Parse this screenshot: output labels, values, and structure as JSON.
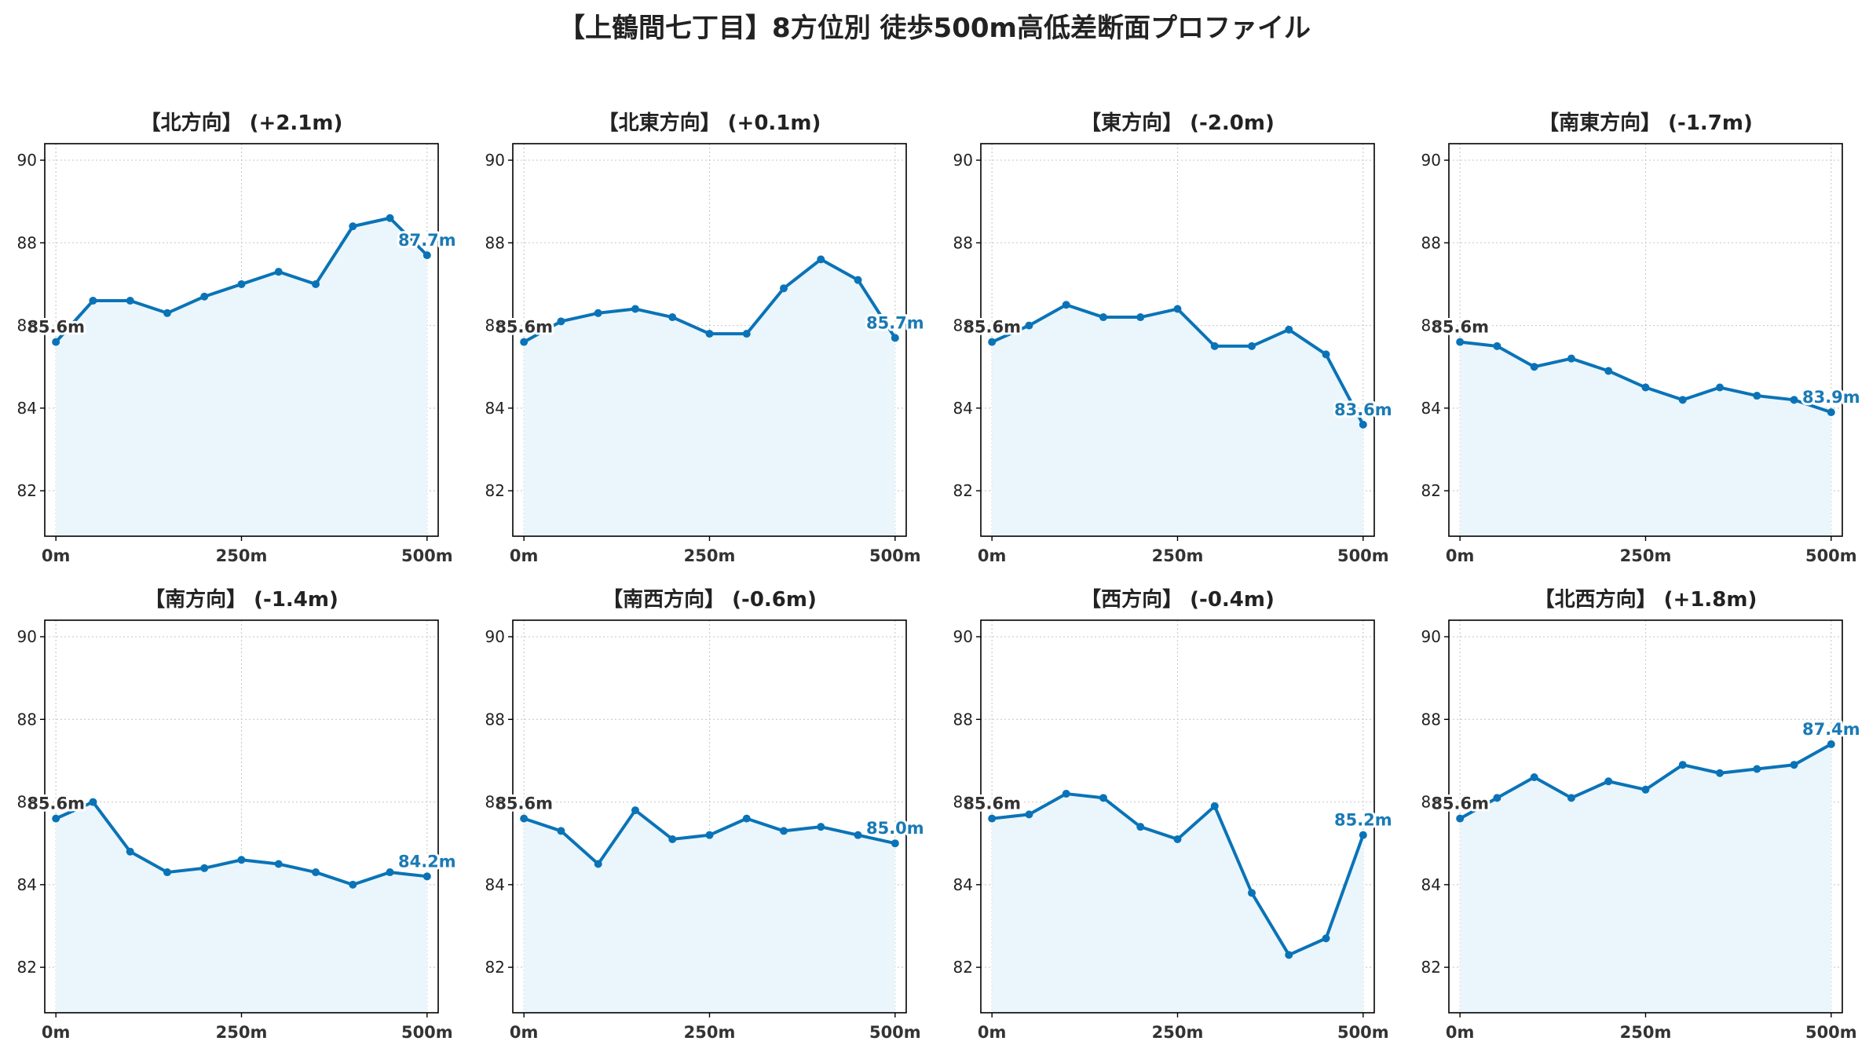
{
  "title": "【上鶴間七丁目】8方位別 徒歩500m高低差断面プロファイル",
  "colors": {
    "line": "#0a73b7",
    "fill": "#eaf6fb",
    "grid": "#cccccc",
    "start_label": "#333333",
    "end_label": "#1a7ab5"
  },
  "chart_data": [
    {
      "type": "area",
      "title": "【北方向】 (+2.1m)",
      "x": [
        0,
        50,
        100,
        150,
        200,
        250,
        300,
        350,
        400,
        450,
        500
      ],
      "values": [
        85.6,
        86.6,
        86.6,
        86.3,
        86.7,
        87.0,
        87.3,
        87.0,
        88.4,
        88.6,
        87.7
      ],
      "start_label": "85.6m",
      "end_label": "87.7m"
    },
    {
      "type": "area",
      "title": "【北東方向】 (+0.1m)",
      "x": [
        0,
        50,
        100,
        150,
        200,
        250,
        300,
        350,
        400,
        450,
        500
      ],
      "values": [
        85.6,
        86.1,
        86.3,
        86.4,
        86.2,
        85.8,
        85.8,
        86.9,
        87.6,
        87.1,
        85.7
      ],
      "start_label": "85.6m",
      "end_label": "85.7m"
    },
    {
      "type": "area",
      "title": "【東方向】 (-2.0m)",
      "x": [
        0,
        50,
        100,
        150,
        200,
        250,
        300,
        350,
        400,
        450,
        500
      ],
      "values": [
        85.6,
        86.0,
        86.5,
        86.2,
        86.2,
        86.4,
        85.5,
        85.5,
        85.9,
        85.3,
        83.6
      ],
      "start_label": "85.6m",
      "end_label": "83.6m"
    },
    {
      "type": "area",
      "title": "【南東方向】 (-1.7m)",
      "x": [
        0,
        50,
        100,
        150,
        200,
        250,
        300,
        350,
        400,
        450,
        500
      ],
      "values": [
        85.6,
        85.5,
        85.0,
        85.2,
        84.9,
        84.5,
        84.2,
        84.5,
        84.3,
        84.2,
        83.9
      ],
      "start_label": "85.6m",
      "end_label": "83.9m"
    },
    {
      "type": "area",
      "title": "【南方向】 (-1.4m)",
      "x": [
        0,
        50,
        100,
        150,
        200,
        250,
        300,
        350,
        400,
        450,
        500
      ],
      "values": [
        85.6,
        86.0,
        84.8,
        84.3,
        84.4,
        84.6,
        84.5,
        84.3,
        84.0,
        84.3,
        84.2
      ],
      "start_label": "85.6m",
      "end_label": "84.2m"
    },
    {
      "type": "area",
      "title": "【南西方向】 (-0.6m)",
      "x": [
        0,
        50,
        100,
        150,
        200,
        250,
        300,
        350,
        400,
        450,
        500
      ],
      "values": [
        85.6,
        85.3,
        84.5,
        85.8,
        85.1,
        85.2,
        85.6,
        85.3,
        85.4,
        85.2,
        85.0
      ],
      "start_label": "85.6m",
      "end_label": "85.0m"
    },
    {
      "type": "area",
      "title": "【西方向】 (-0.4m)",
      "x": [
        0,
        50,
        100,
        150,
        200,
        250,
        300,
        350,
        400,
        450,
        500
      ],
      "values": [
        85.6,
        85.7,
        86.2,
        86.1,
        85.4,
        85.1,
        85.9,
        83.8,
        82.3,
        82.7,
        85.2
      ],
      "start_label": "85.6m",
      "end_label": "85.2m"
    },
    {
      "type": "area",
      "title": "【北西方向】 (+1.8m)",
      "x": [
        0,
        50,
        100,
        150,
        200,
        250,
        300,
        350,
        400,
        450,
        500
      ],
      "values": [
        85.6,
        86.1,
        86.6,
        86.1,
        86.5,
        86.3,
        86.9,
        86.7,
        86.8,
        86.9,
        87.4
      ],
      "start_label": "85.6m",
      "end_label": "87.4m"
    }
  ],
  "axes": {
    "ylim": [
      80.9,
      90.4
    ],
    "yticks": [
      "82",
      "84",
      "86",
      "88",
      "90"
    ],
    "xlim": [
      -15,
      515
    ],
    "xticks": [
      "0m",
      "250m",
      "500m"
    ],
    "grid": true
  }
}
